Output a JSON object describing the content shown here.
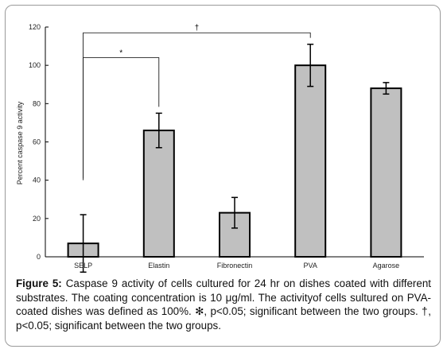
{
  "chart_data": {
    "type": "bar",
    "categories": [
      "SELP",
      "Elastin",
      "Fibronectin",
      "PVA",
      "Agarose"
    ],
    "values": [
      7,
      66,
      23,
      100,
      88
    ],
    "errors": [
      15,
      9,
      8,
      11,
      3
    ],
    "ylabel": "Percent caspase 9 activity",
    "xlabel": "",
    "ylim": [
      0,
      120
    ],
    "yticks": [
      0,
      20,
      40,
      60,
      80,
      100,
      120
    ],
    "ytick_labels": [
      "0",
      "20",
      "40",
      "60",
      "80",
      "100",
      "120"
    ],
    "grid": false,
    "bar_color": "#c0c0c0",
    "annotations": [
      {
        "label": "*",
        "from": "SELP",
        "to": "Elastin"
      },
      {
        "label": "†",
        "from": "SELP",
        "to": "PVA"
      }
    ]
  },
  "caption": {
    "label": "Figure 5:",
    "text": " Caspase 9 activity of cells cultured for 24 hr on dishes coated with different substrates. The coating concentration is 10 μg/ml. The activityof cells sultured on PVA-coated dishes was defined as 100%. ✻, p<0.05; significant between the two groups. †, p<0.05; significant between the two groups."
  }
}
